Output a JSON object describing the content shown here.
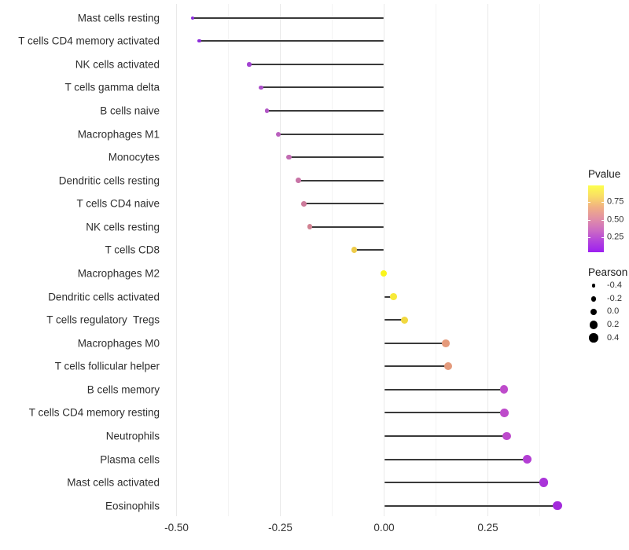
{
  "chart_data": {
    "type": "lollipop",
    "title": "",
    "xlabel": "",
    "ylabel": "",
    "xlim": [
      -0.527,
      0.474
    ],
    "grid": true,
    "x_ticks": [
      {
        "value": -0.5,
        "label": "-0.50"
      },
      {
        "value": -0.25,
        "label": "-0.25"
      },
      {
        "value": 0.0,
        "label": "0.00"
      },
      {
        "value": 0.25,
        "label": "0.25"
      }
    ],
    "x_minor_ticks": [
      -0.375,
      -0.125,
      0.125,
      0.375
    ],
    "categories": [
      "Mast cells resting",
      "T cells CD4 memory activated",
      "NK cells activated",
      "T cells gamma delta",
      "B cells naive",
      "Macrophages M1",
      "Monocytes",
      "Dendritic cells resting",
      "T cells CD4 naive",
      "NK cells resting",
      "T cells CD8",
      "Macrophages M2",
      "Dendritic cells activated",
      "T cells regulatory  Tregs",
      "Macrophages M0",
      "T cells follicular helper",
      "B cells memory",
      "T cells CD4 memory resting",
      "Neutrophils",
      "Plasma cells",
      "Mast cells activated",
      "Eosinophils"
    ],
    "series": [
      {
        "name": "Pearson",
        "values": [
          -0.461,
          -0.445,
          -0.325,
          -0.296,
          -0.282,
          -0.254,
          -0.229,
          -0.206,
          -0.193,
          -0.179,
          -0.072,
          -0.001,
          0.023,
          0.05,
          0.149,
          0.155,
          0.289,
          0.29,
          0.295,
          0.345,
          0.385,
          0.418
        ]
      }
    ],
    "point_colors": [
      "#8a2bdb",
      "#8c2cda",
      "#a343d2",
      "#ac4eca",
      "#b257c6",
      "#ba60be",
      "#c26cb2",
      "#c874a6",
      "#cd7b9b",
      "#d18292",
      "#eecb49",
      "#faf51b",
      "#f7e93a",
      "#f1d840",
      "#e59a7b",
      "#e49b7d",
      "#be4bcb",
      "#be4bcb",
      "#bd4acc",
      "#b33ed4",
      "#aa34d9",
      "#a32bdb"
    ],
    "stem_color": "#3a3a3a",
    "size_anchors": [
      [
        -0.4,
        4.6
      ],
      [
        -0.2,
        6.6
      ],
      [
        0.0,
        8.6
      ],
      [
        0.2,
        10.2
      ],
      [
        0.4,
        11.4
      ]
    ],
    "legend": {
      "pvalue": {
        "title": "Pvalue",
        "gradient_top_to_bottom": [
          "#fdff4d",
          "#f9dc66",
          "#f0ae85",
          "#e18fa6",
          "#cd6dc2",
          "#b344dc",
          "#9d1ff0"
        ],
        "ticks": [
          {
            "label": "0.75",
            "frac_from_top": 0.247
          },
          {
            "label": "0.50",
            "frac_from_top": 0.51
          },
          {
            "label": "0.25",
            "frac_from_top": 0.773
          }
        ]
      },
      "pearson": {
        "title": "Pearson",
        "entries": [
          {
            "label": "-0.4",
            "size": 4.6
          },
          {
            "label": "-0.2",
            "size": 6.6
          },
          {
            "label": "0.0",
            "size": 8.6
          },
          {
            "label": "0.2",
            "size": 10.2
          },
          {
            "label": "0.4",
            "size": 11.4
          }
        ]
      }
    }
  }
}
